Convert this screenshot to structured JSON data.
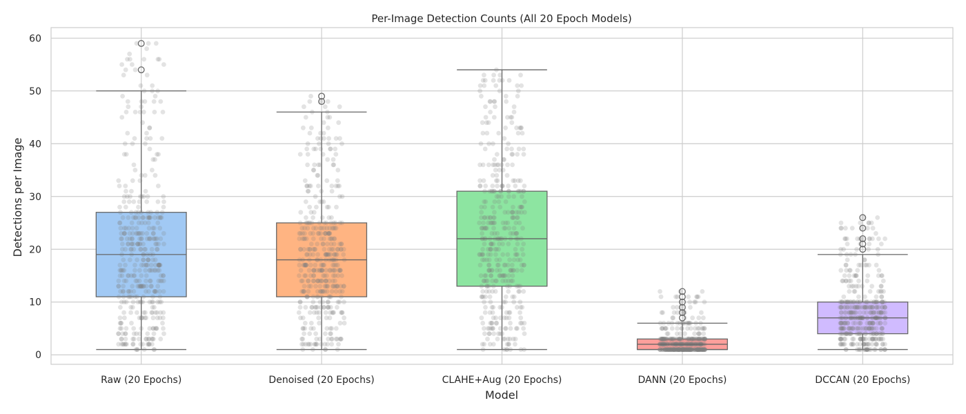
{
  "chart_data": {
    "type": "box",
    "title": "Per-Image Detection Counts (All 20 Epoch Models)",
    "xlabel": "Model",
    "ylabel": "Detections per Image",
    "ylim": [
      -1.8,
      62
    ],
    "yticks": [
      0,
      10,
      20,
      30,
      40,
      50,
      60
    ],
    "grid": true,
    "legend": "none",
    "categories": [
      "Raw (20 Epochs)",
      "Denoised (20 Epochs)",
      "CLAHE+Aug (20 Epochs)",
      "DANN (20 Epochs)",
      "DCCAN (20 Epochs)"
    ],
    "boxes": [
      {
        "category": "Raw (20 Epochs)",
        "whisker_low": 1,
        "q1": 11,
        "median": 19,
        "q3": 27,
        "whisker_high": 50,
        "outliers": [
          54,
          59
        ],
        "color": "#a1c9f4",
        "strip_max": 59
      },
      {
        "category": "Denoised (20 Epochs)",
        "whisker_low": 1,
        "q1": 11,
        "median": 18,
        "q3": 25,
        "whisker_high": 46,
        "outliers": [
          48,
          49
        ],
        "color": "#ffb482",
        "strip_max": 49
      },
      {
        "category": "CLAHE+Aug (20 Epochs)",
        "whisker_low": 1,
        "q1": 13,
        "median": 22,
        "q3": 31,
        "whisker_high": 54,
        "outliers": [],
        "color": "#8de5a1",
        "strip_max": 54
      },
      {
        "category": "DANN (20 Epochs)",
        "whisker_low": 1,
        "q1": 1,
        "median": 2,
        "q3": 3,
        "whisker_high": 6,
        "outliers": [
          7,
          8,
          9,
          10,
          11,
          12
        ],
        "color": "#ff9f9b",
        "strip_max": 12
      },
      {
        "category": "DCCAN (20 Epochs)",
        "whisker_low": 1,
        "q1": 4,
        "median": 7,
        "q3": 10,
        "whisker_high": 19,
        "outliers": [
          20,
          21,
          22,
          24,
          26
        ],
        "color": "#d0bbff",
        "strip_max": 26
      }
    ],
    "colors": {
      "grid": "#cccccc",
      "box_edge": "#666666",
      "strip_points": "#808080",
      "axes_edge": "#cccccc"
    }
  }
}
